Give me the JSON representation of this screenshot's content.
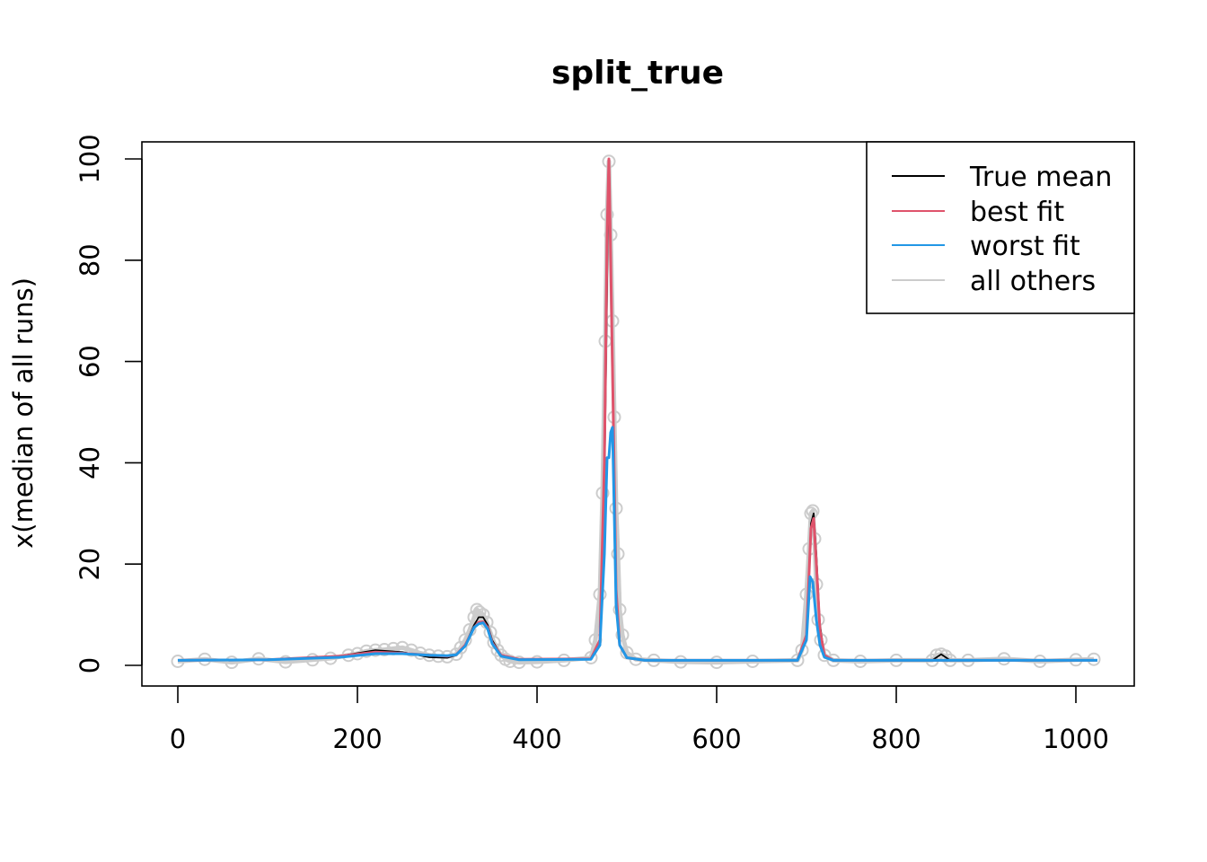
{
  "chart_data": {
    "type": "line",
    "title": "split_true",
    "xlabel": "",
    "ylabel": "x(median of all runs)",
    "xlim": [
      0,
      1024
    ],
    "ylim": [
      0,
      100
    ],
    "x_ticks": [
      0,
      200,
      400,
      600,
      800,
      1000
    ],
    "y_ticks": [
      0,
      20,
      40,
      60,
      80,
      100
    ],
    "legend": {
      "placement": "top-right",
      "entries": [
        {
          "name": "True mean",
          "color": "#000000"
        },
        {
          "name": "best fit",
          "color": "#DF536B"
        },
        {
          "name": "worst fit",
          "color": "#2297E6"
        },
        {
          "name": "all others",
          "color": "#CCCCCC"
        }
      ]
    },
    "series": [
      {
        "name": "True mean",
        "color": "#000000",
        "x": [
          0,
          100,
          180,
          220,
          250,
          280,
          300,
          310,
          320,
          330,
          335,
          340,
          345,
          350,
          360,
          380,
          460,
          470,
          475,
          478,
          480,
          482,
          485,
          488,
          492,
          500,
          520,
          690,
          700,
          705,
          708,
          711,
          715,
          720,
          730,
          840,
          845,
          850,
          855,
          860,
          1024
        ],
        "y": [
          1,
          1.1,
          1.8,
          3.0,
          2.6,
          1.6,
          1.5,
          2,
          4,
          8,
          9.5,
          9.5,
          8,
          5,
          2,
          1.2,
          1.3,
          5,
          35,
          75,
          100,
          80,
          45,
          15,
          4,
          1.5,
          1,
          1,
          6,
          28,
          30,
          22,
          8,
          2,
          1,
          1,
          1.6,
          2.2,
          1.6,
          1,
          1
        ]
      },
      {
        "name": "best fit",
        "color": "#DF536B",
        "x": [
          0,
          100,
          180,
          220,
          250,
          280,
          300,
          310,
          320,
          330,
          335,
          340,
          345,
          350,
          360,
          380,
          460,
          470,
          475,
          478,
          480,
          482,
          485,
          488,
          492,
          500,
          520,
          690,
          700,
          705,
          708,
          711,
          715,
          720,
          730,
          1024
        ],
        "y": [
          1,
          1.1,
          1.8,
          2.6,
          2.4,
          2.0,
          1.8,
          2.1,
          4,
          7.5,
          8.5,
          8.6,
          7.5,
          4.5,
          2,
          1.2,
          1.3,
          5,
          40,
          85,
          100,
          80,
          48,
          15,
          4,
          1.5,
          1,
          1,
          6,
          27,
          29,
          20,
          7,
          2,
          1,
          1
        ]
      },
      {
        "name": "worst fit",
        "color": "#2297E6",
        "x": [
          0,
          100,
          180,
          220,
          250,
          280,
          300,
          310,
          320,
          330,
          335,
          340,
          345,
          350,
          360,
          380,
          460,
          470,
          475,
          478,
          480,
          482,
          484,
          486,
          488,
          492,
          500,
          520,
          690,
          700,
          704,
          707,
          711,
          715,
          720,
          730,
          1024
        ],
        "y": [
          1,
          1.1,
          1.6,
          2.3,
          2.3,
          2.0,
          1.9,
          2.1,
          3.8,
          7.5,
          8.2,
          8.4,
          7.2,
          4.3,
          1.8,
          1.1,
          1.2,
          4,
          22,
          41,
          41,
          46,
          47,
          30,
          12,
          4,
          1.5,
          1,
          1,
          5,
          17.5,
          16.5,
          9,
          4,
          1.6,
          1,
          1
        ]
      },
      {
        "name": "all others",
        "color": "#CCCCCC",
        "x": [
          0,
          30,
          60,
          90,
          120,
          150,
          170,
          190,
          200,
          210,
          220,
          230,
          240,
          250,
          260,
          270,
          280,
          290,
          300,
          310,
          315,
          320,
          325,
          330,
          333,
          336,
          340,
          344,
          348,
          352,
          356,
          360,
          365,
          370,
          380,
          400,
          430,
          460,
          465,
          470,
          473,
          476,
          478,
          480,
          482,
          484,
          486,
          488,
          490,
          492,
          495,
          500,
          510,
          530,
          560,
          600,
          640,
          690,
          695,
          700,
          703,
          705,
          707,
          709,
          711,
          713,
          716,
          720,
          730,
          760,
          800,
          840,
          845,
          850,
          855,
          860,
          880,
          920,
          960,
          1000,
          1020
        ],
        "y": [
          0.8,
          1.2,
          0.6,
          1.3,
          0.7,
          1.1,
          1.4,
          2.0,
          2.3,
          2.8,
          3.0,
          3.1,
          3.3,
          3.5,
          3.0,
          2.4,
          2.0,
          1.8,
          1.7,
          2.2,
          3.5,
          5.0,
          7.0,
          9.5,
          11.0,
          10.5,
          10.0,
          8.5,
          6.5,
          4.5,
          3.0,
          2.0,
          1.2,
          0.8,
          0.6,
          0.7,
          1.0,
          1.5,
          5.0,
          14.0,
          34.0,
          64.0,
          89.0,
          99.5,
          85.0,
          68.0,
          49.0,
          31.0,
          22.0,
          11.0,
          6.0,
          2.5,
          1.2,
          1.0,
          0.7,
          0.6,
          0.8,
          1.0,
          3.0,
          14.0,
          23.0,
          30.0,
          30.5,
          25.0,
          16.0,
          9.0,
          5.0,
          2.0,
          1.0,
          0.8,
          1.0,
          1.0,
          2.0,
          2.2,
          1.8,
          1.0,
          1.0,
          1.3,
          0.8,
          1.1,
          1.2
        ]
      }
    ]
  }
}
